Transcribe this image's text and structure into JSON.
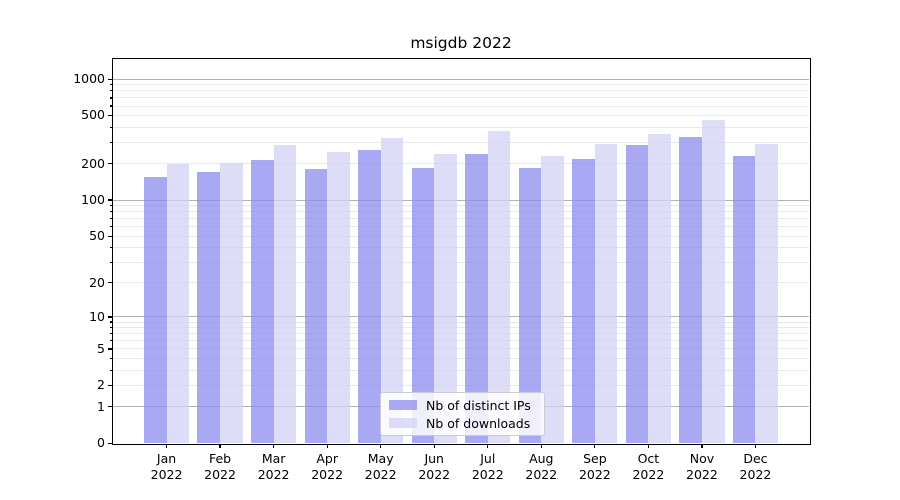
{
  "title": "msigdb 2022",
  "legend": {
    "items": [
      {
        "label": "Nb of distinct IPs",
        "color": "#8888ee"
      },
      {
        "label": "Nb of downloads",
        "color": "#d0d0f5"
      }
    ]
  },
  "chart_data": {
    "type": "bar",
    "title": "msigdb 2022",
    "categories": [
      "Jan",
      "Feb",
      "Mar",
      "Apr",
      "May",
      "Jun",
      "Jul",
      "Aug",
      "Sep",
      "Oct",
      "Nov",
      "Dec"
    ],
    "category_year_label": "2022",
    "series": [
      {
        "name": "Nb of distinct IPs",
        "color": "#8888ee",
        "values": [
          155,
          170,
          215,
          182,
          260,
          184,
          239,
          184,
          220,
          287,
          330,
          233
        ]
      },
      {
        "name": "Nb of downloads",
        "color": "#d0d0f5",
        "values": [
          198,
          202,
          287,
          250,
          328,
          240,
          373,
          230,
          293,
          356,
          459,
          291
        ]
      }
    ],
    "xlabel": "",
    "ylabel": "",
    "yscale": "log(1+x)",
    "ylim": [
      0,
      1460
    ],
    "yticks": [
      0,
      1,
      2,
      5,
      10,
      20,
      50,
      100,
      200,
      500,
      1000
    ],
    "major_gridlines": [
      1,
      10,
      100,
      1000
    ],
    "minor_gridlines": [
      2,
      3,
      4,
      5,
      6,
      7,
      8,
      9,
      20,
      30,
      40,
      50,
      60,
      70,
      80,
      90,
      200,
      300,
      400,
      500,
      600,
      700,
      800,
      900
    ],
    "grid": "both",
    "legend_position": "lower center",
    "colors": {
      "major_grid": "#b2b2b2",
      "minor_grid": "#e8e8e8",
      "spine": "#000000"
    }
  }
}
